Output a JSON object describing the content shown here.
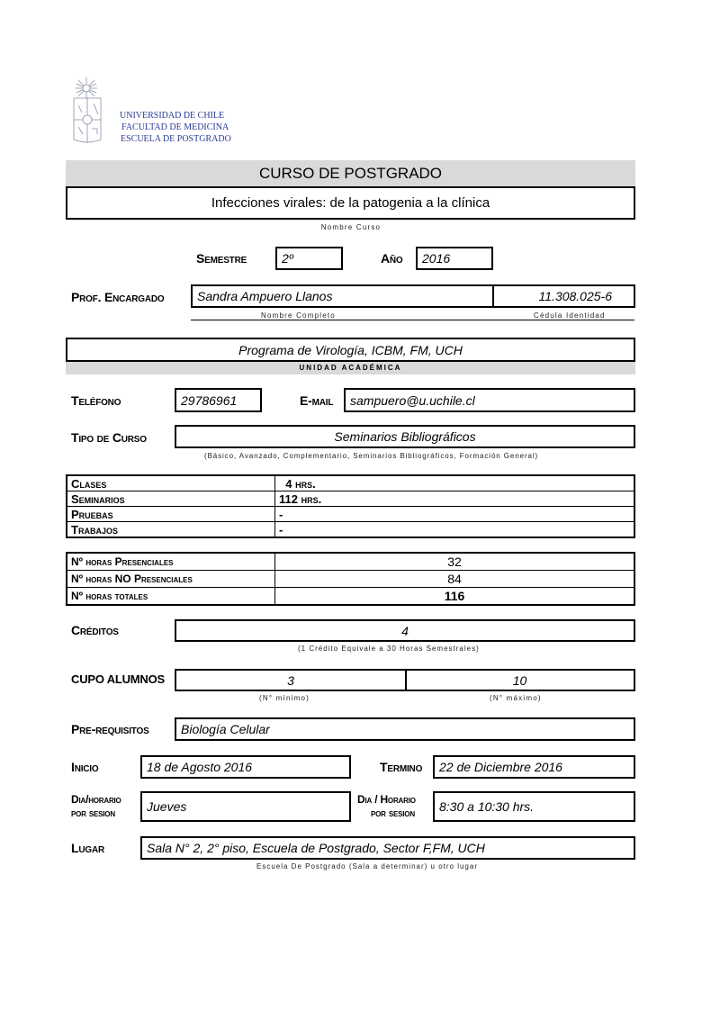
{
  "header": {
    "logo_alt": "Universidad de Chile coat of arms",
    "institution_lines": [
      "UNIVERSIDAD DE CHILE",
      "FACULTAD DE MEDICINA",
      "ESCUELA DE POSTGRADO"
    ],
    "uni_color": "#2b3b98"
  },
  "title": "CURSO  DE  POSTGRADO",
  "course": {
    "name": "Infecciones virales: de la patogenia a la clínica",
    "name_caption": "Nombre  Curso"
  },
  "semestre": {
    "label": "Semestre",
    "value": "2º"
  },
  "anio": {
    "label": "Año",
    "value": "2016"
  },
  "profesor": {
    "label": "Prof. Encargado",
    "name": "Sandra Ampuero Llanos",
    "id": "11.308.025-6",
    "name_caption": "Nombre Completo",
    "id_caption": "Cédula Identidad"
  },
  "unidad": {
    "value": "Programa de Virología, ICBM, FM, UCH",
    "caption": "UNIDAD  ACADÉMICA"
  },
  "telefono": {
    "label": "Teléfono",
    "value": "29786961"
  },
  "email": {
    "label": "E-mail",
    "value": "sampuero@u.uchile.cl"
  },
  "tipo_curso": {
    "label": "Tipo de Curso",
    "value": "Seminarios  Bibliográficos",
    "caption": "(Básico, Avanzado, Complementario, Seminarios Bibliográficos, Formación General)"
  },
  "actividades": [
    {
      "label": "Clases",
      "value": "  4 hrs."
    },
    {
      "label": "Seminarios",
      "value": "112 hrs."
    },
    {
      "label": "Pruebas",
      "value": "-"
    },
    {
      "label": "Trabajos",
      "value": "-"
    }
  ],
  "horas": [
    {
      "label": "Nº horas Presenciales",
      "value": "32"
    },
    {
      "label": "Nº horas NO Presenciales",
      "value": "84"
    },
    {
      "label": "Nº horas totales",
      "value": "116"
    }
  ],
  "creditos": {
    "label": "Créditos",
    "value": "4",
    "caption": "(1 Crédito Equivale a 30 Horas Semestrales)"
  },
  "cupo": {
    "label": "CUPO ALUMNOS",
    "min": "3",
    "max": "10",
    "min_caption": "(N° mínimo)",
    "max_caption": "(N° máximo)"
  },
  "prerequisitos": {
    "label": "Pre-requisitos",
    "value": "Biología Celular"
  },
  "inicio": {
    "label": "Inicio",
    "value": "18 de Agosto 2016"
  },
  "termino": {
    "label": "Termino",
    "value": "22 de Diciembre 2016"
  },
  "dia_horario_1": {
    "label_line1": "Dia/horario",
    "label_line2": "por sesion",
    "value": "Jueves"
  },
  "dia_horario_2": {
    "label_line1": "Dia / Horario",
    "label_line2": "por sesion",
    "value": "8:30 a 10:30 hrs."
  },
  "lugar": {
    "label": "Lugar",
    "value": "Sala N° 2, 2° piso, Escuela de Postgrado, Sector F,FM, UCH",
    "caption": "Escuela De Postgrado (Sala a determinar) u otro lugar"
  }
}
